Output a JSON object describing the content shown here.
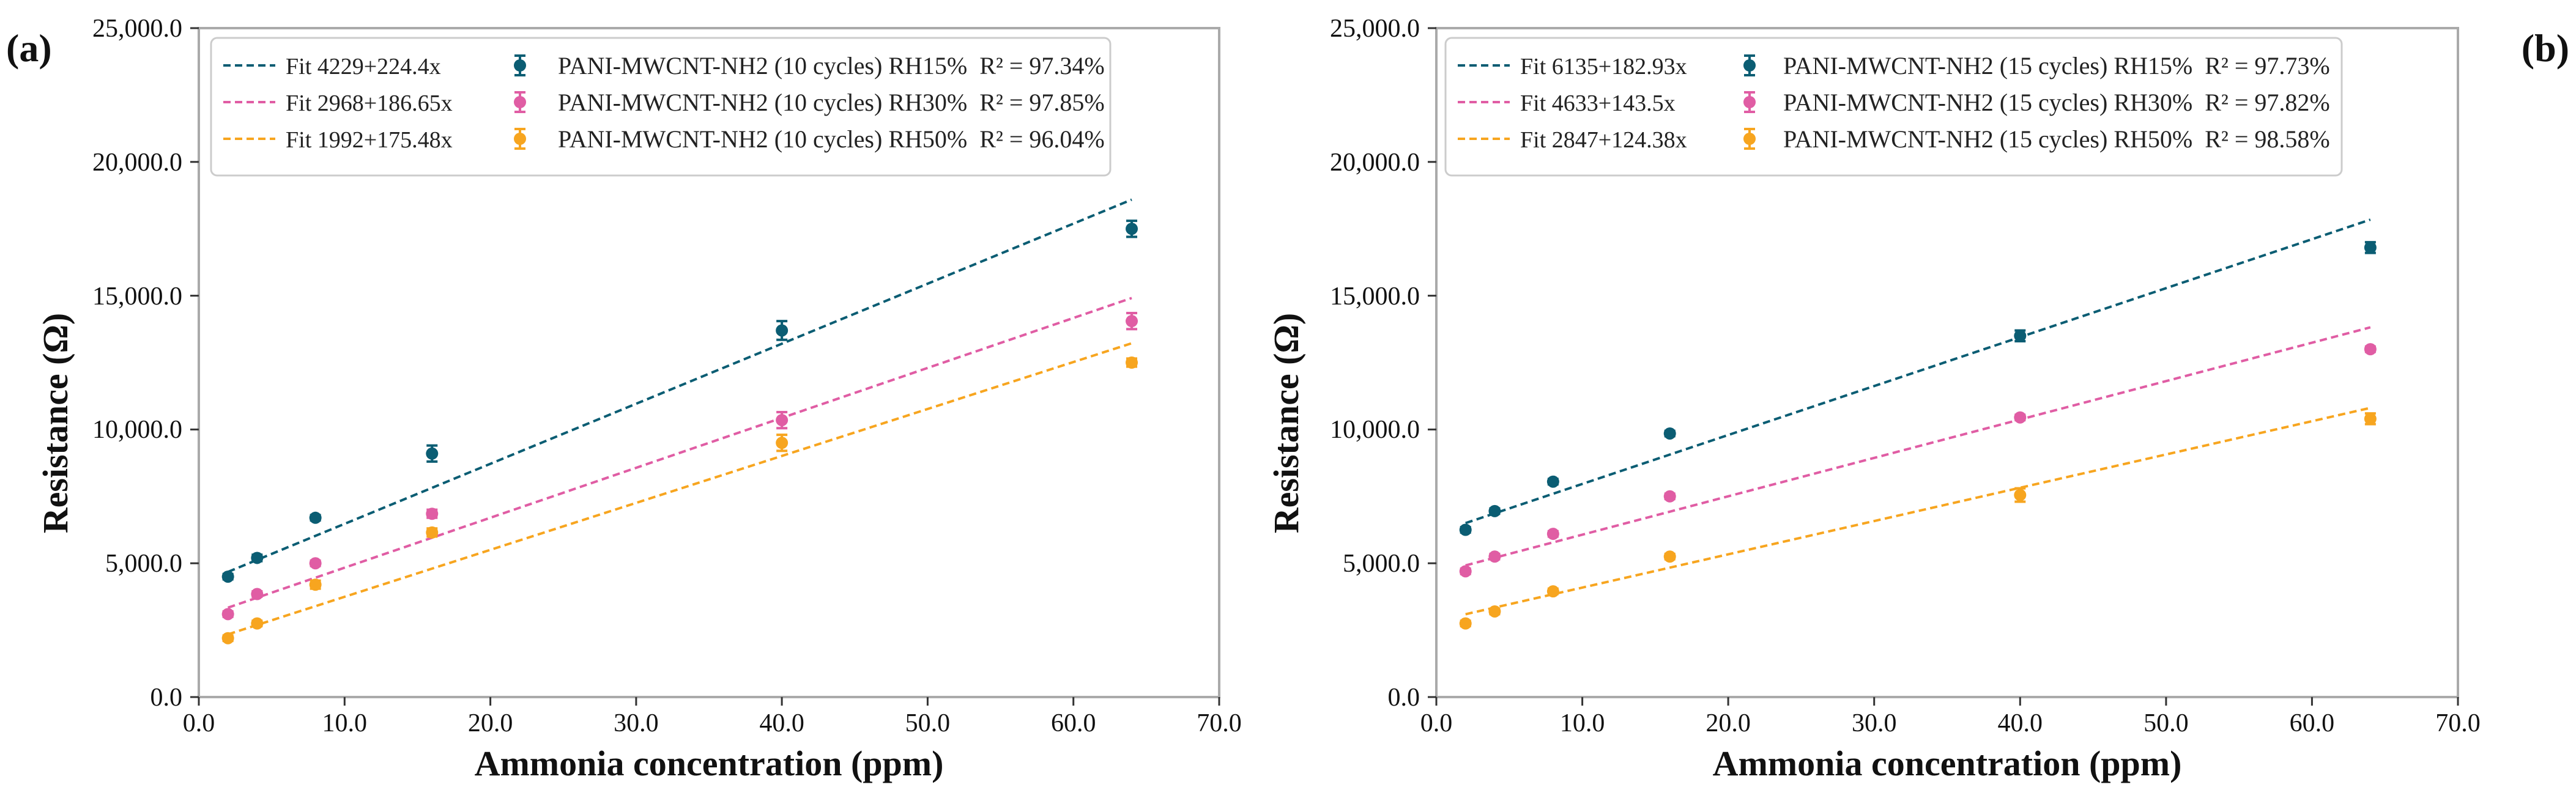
{
  "colors": {
    "rh15": "#0b5d73",
    "rh30": "#e05da4",
    "rh50": "#f7a51f",
    "axis": "#333333",
    "frame": "#aaaaaa"
  },
  "axis_labels": {
    "xlabel": "Ammonia concentration (ppm)",
    "ylabel": "Resistance (Ω)"
  },
  "x_ticks": [
    "0.0",
    "10.0",
    "20.0",
    "30.0",
    "40.0",
    "50.0",
    "60.0",
    "70.0"
  ],
  "y_ticks": [
    "0.0",
    "5,000.0",
    "10,000.0",
    "15,000.0",
    "20,000.0",
    "25,000.0"
  ],
  "chart_data": [
    {
      "panel_label": "(a)",
      "type": "scatter",
      "xlabel": "Ammonia concentration (ppm)",
      "ylabel": "Resistance (Ω)",
      "xlim": [
        0,
        70
      ],
      "ylim": [
        0,
        25000
      ],
      "legend": "top-left",
      "x": [
        2,
        4,
        8,
        16,
        40,
        64
      ],
      "series": [
        {
          "name": "PANI-MWCNT-NH2 (10 cycles) RH15%",
          "r2": "R² = 97.34%",
          "color_key": "rh15",
          "values": [
            4500,
            5200,
            6700,
            9100,
            13700,
            17500
          ],
          "errors": [
            100,
            120,
            100,
            300,
            350,
            300
          ],
          "fit_label": "Fit 4229+224.4x",
          "fit_intercept": 4229,
          "fit_slope": 224.4
        },
        {
          "name": "PANI-MWCNT-NH2 (10 cycles) RH30%",
          "r2": "R² = 97.85%",
          "color_key": "rh30",
          "values": [
            3100,
            3850,
            5000,
            6850,
            10350,
            14050
          ],
          "errors": [
            100,
            100,
            100,
            150,
            300,
            300
          ],
          "fit_label": "Fit 2968+186.65x",
          "fit_intercept": 2968,
          "fit_slope": 186.65
        },
        {
          "name": "PANI-MWCNT-NH2 (10 cycles) RH50%",
          "r2": "R² = 96.04%",
          "color_key": "rh50",
          "values": [
            2200,
            2750,
            4200,
            6150,
            9500,
            12500
          ],
          "errors": [
            100,
            100,
            150,
            150,
            300,
            150
          ],
          "fit_label": "Fit 1992+175.48x",
          "fit_intercept": 1992,
          "fit_slope": 175.48
        }
      ]
    },
    {
      "panel_label": "(b)",
      "type": "scatter",
      "xlabel": "Ammonia concentration (ppm)",
      "ylabel": "Resistance (Ω)",
      "xlim": [
        0,
        70
      ],
      "ylim": [
        0,
        25000
      ],
      "legend": "top-left",
      "x": [
        2,
        4,
        8,
        16,
        40,
        64
      ],
      "series": [
        {
          "name": "PANI-MWCNT-NH2 (15 cycles) RH15%",
          "r2": "R² = 97.73%",
          "color_key": "rh15",
          "values": [
            6250,
            6950,
            8050,
            9850,
            13500,
            16800
          ],
          "errors": [
            100,
            100,
            100,
            100,
            200,
            200
          ],
          "fit_label": "Fit 6135+182.93x",
          "fit_intercept": 6135,
          "fit_slope": 182.93
        },
        {
          "name": "PANI-MWCNT-NH2 (15 cycles) RH30%",
          "r2": "R² = 97.82%",
          "color_key": "rh30",
          "values": [
            4700,
            5250,
            6100,
            7500,
            10450,
            13000
          ],
          "errors": [
            100,
            100,
            100,
            100,
            100,
            100
          ],
          "fit_label": "Fit 4633+143.5x",
          "fit_intercept": 4633,
          "fit_slope": 143.5
        },
        {
          "name": "PANI-MWCNT-NH2 (15 cycles) RH50%",
          "r2": "R² = 98.58%",
          "color_key": "rh50",
          "values": [
            2750,
            3200,
            3950,
            5250,
            7550,
            10400
          ],
          "errors": [
            100,
            100,
            100,
            100,
            250,
            200
          ],
          "fit_label": "Fit 2847+124.38x",
          "fit_intercept": 2847,
          "fit_slope": 124.38
        }
      ]
    }
  ]
}
